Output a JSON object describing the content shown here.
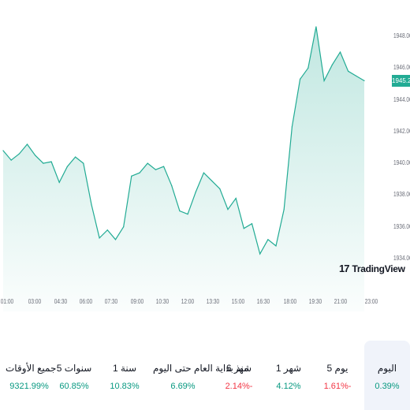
{
  "chart": {
    "line_color": "#22ab94",
    "price_axis": [
      "1948.00",
      "1946.00",
      "1944.00",
      "1942.00",
      "1940.00",
      "1938.00",
      "1936.00",
      "1934.00"
    ],
    "last_price": "1945.20",
    "time_axis": [
      "01:00",
      "03:00",
      "04:30",
      "06:00",
      "07:30",
      "09:00",
      "10:30",
      "12:00",
      "13:30",
      "15:00",
      "16:30",
      "18:00",
      "19:30",
      "21:00",
      "23:00"
    ],
    "logo_text": "TradingView",
    "logo_mark": "17"
  },
  "chart_data": {
    "type": "area",
    "x": [
      "00:00",
      "00:30",
      "01:00",
      "01:30",
      "02:00",
      "02:30",
      "03:00",
      "03:30",
      "04:00",
      "04:30",
      "05:00",
      "05:30",
      "06:00",
      "06:30",
      "07:00",
      "07:30",
      "08:00",
      "08:30",
      "09:00",
      "09:30",
      "10:00",
      "10:30",
      "11:00",
      "11:30",
      "12:00",
      "12:30",
      "13:00",
      "13:30",
      "14:00",
      "14:30",
      "15:00",
      "15:30",
      "16:00",
      "16:30",
      "17:00",
      "17:30",
      "18:00",
      "18:30",
      "19:00",
      "19:30",
      "20:00",
      "20:30",
      "21:00",
      "21:30",
      "22:00",
      "22:30"
    ],
    "values": [
      1940.8,
      1940.2,
      1940.6,
      1941.2,
      1940.5,
      1940.0,
      1940.1,
      1938.8,
      1939.8,
      1940.4,
      1940.0,
      1937.4,
      1935.3,
      1935.8,
      1935.2,
      1936.0,
      1939.2,
      1939.4,
      1940.0,
      1939.6,
      1939.8,
      1938.6,
      1937.0,
      1936.8,
      1938.2,
      1939.4,
      1938.9,
      1938.4,
      1937.1,
      1937.8,
      1935.9,
      1936.2,
      1934.3,
      1935.2,
      1934.8,
      1937.1,
      1942.3,
      1945.3,
      1946.0,
      1948.6,
      1945.2,
      1946.2,
      1947.0,
      1945.8,
      1945.5,
      1945.2
    ],
    "ylim": [
      1933.0,
      1949.0
    ],
    "title": "",
    "xlabel": "",
    "ylabel": ""
  },
  "performance": [
    {
      "label": "جميع الأوقات",
      "value": "9321.99%",
      "trend": "pos"
    },
    {
      "label": "5 سنوات",
      "value": "60.85%",
      "trend": "pos"
    },
    {
      "label": "1 سنة",
      "value": "10.83%",
      "trend": "pos"
    },
    {
      "label": "منذ بداية العام حتى اليوم",
      "value": "6.69%",
      "trend": "pos"
    },
    {
      "label": "6 شهر",
      "value": "2.14%-",
      "trend": "neg"
    },
    {
      "label": "1 شهر",
      "value": "4.12%",
      "trend": "pos"
    },
    {
      "label": "5 يوم",
      "value": "1.61%-",
      "trend": "neg"
    },
    {
      "label": "اليوم",
      "value": "0.39%",
      "trend": "pos",
      "selected": true
    }
  ]
}
